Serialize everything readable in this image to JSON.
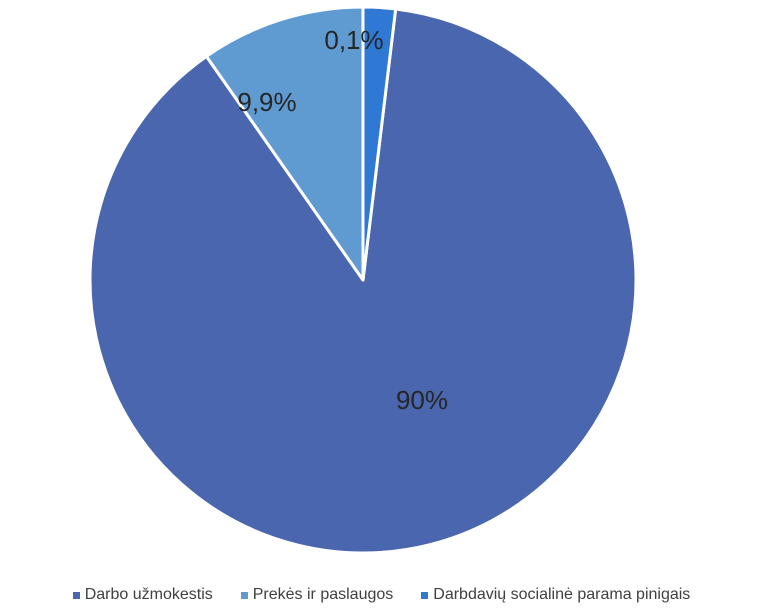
{
  "chart_data": {
    "type": "pie",
    "categories": [
      "Darbo užmokestis",
      "Prekės ir paslaugos",
      "Darbdavių socialinė parama pinigais"
    ],
    "values": [
      90,
      9.9,
      0.1
    ],
    "data_labels": [
      "90%",
      "9,9%",
      "0,1%"
    ],
    "colors": [
      "#4a66ae",
      "#5f9bd1",
      "#2f79d4"
    ],
    "legend_placement": "bottom"
  }
}
